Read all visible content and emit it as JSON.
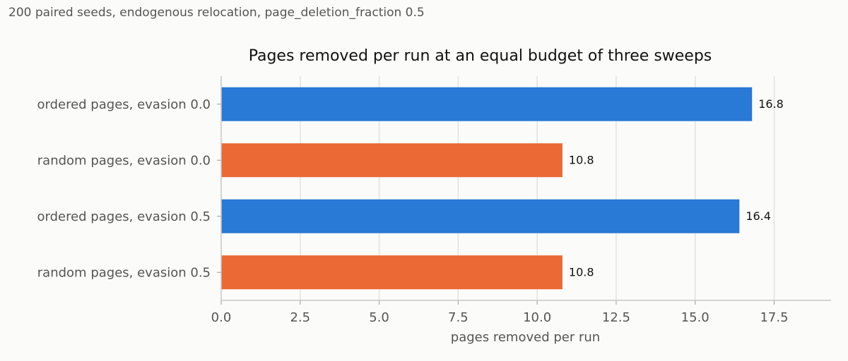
{
  "subtitle": "200 paired seeds, endogenous relocation, page_deletion_fraction 0.5",
  "colors": {
    "ordered": "#2979d6",
    "random": "#eb6935",
    "grid": "#e2e2e2",
    "axis": "#c8c8c8"
  },
  "chart_data": {
    "type": "bar",
    "orientation": "horizontal",
    "title": "Pages removed per run at an equal budget of three sweeps",
    "xlabel": "pages removed per run",
    "ylabel": "",
    "xlim": [
      0,
      19.3
    ],
    "xticks": [
      0.0,
      2.5,
      5.0,
      7.5,
      10.0,
      12.5,
      15.0,
      17.5
    ],
    "xtick_labels": [
      "0.0",
      "2.5",
      "5.0",
      "7.5",
      "10.0",
      "12.5",
      "15.0",
      "17.5"
    ],
    "grid": "vertical",
    "categories": [
      "ordered pages, evasion 0.0",
      "random pages, evasion 0.0",
      "ordered pages, evasion 0.5",
      "random pages, evasion 0.5"
    ],
    "values": [
      16.8,
      10.8,
      16.4,
      10.8
    ],
    "value_labels": [
      "16.8",
      "10.8",
      "16.4",
      "10.8"
    ],
    "bar_colors": [
      "#2979d6",
      "#eb6935",
      "#2979d6",
      "#eb6935"
    ]
  }
}
